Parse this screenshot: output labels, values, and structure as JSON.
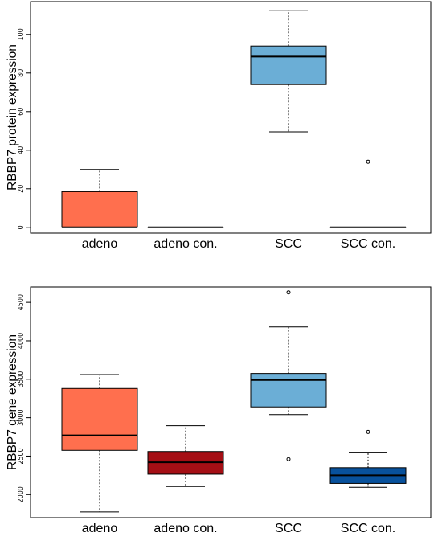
{
  "chart_data": [
    {
      "type": "box",
      "ylabel": "RBBP7 protein expression",
      "categories": [
        "adeno",
        "adeno con.",
        "SCC",
        "SCC con."
      ],
      "ylim": [
        -3,
        117
      ],
      "yticks": [
        0,
        20,
        40,
        60,
        80,
        100
      ],
      "boxes": [
        {
          "category": "adeno",
          "min": 0,
          "q1": 0,
          "median": 0,
          "q3": 18.5,
          "max": 30,
          "outliers": [],
          "color": "#FF6F4E"
        },
        {
          "category": "adeno con.",
          "min": 0,
          "q1": 0,
          "median": 0,
          "q3": 0,
          "max": 0,
          "outliers": [],
          "color": "#A50F15"
        },
        {
          "category": "SCC",
          "min": 49.5,
          "q1": 74,
          "median": 88.5,
          "q3": 94,
          "max": 112.5,
          "outliers": [],
          "color": "#6BAED6"
        },
        {
          "category": "SCC con.",
          "min": 0,
          "q1": 0,
          "median": 0,
          "q3": 0,
          "max": 0,
          "outliers": [
            34
          ],
          "color": "#08519C"
        }
      ]
    },
    {
      "type": "box",
      "ylabel": "RBBP7 gene expression",
      "categories": [
        "adeno",
        "adeno con.",
        "SCC",
        "SCC con."
      ],
      "ylim": [
        1700,
        4700
      ],
      "yticks": [
        2000,
        2500,
        3000,
        3500,
        4000,
        4500
      ],
      "boxes": [
        {
          "category": "adeno",
          "min": 1775,
          "q1": 2575,
          "median": 2770,
          "q3": 3380,
          "max": 3560,
          "outliers": [],
          "color": "#FF6F4E"
        },
        {
          "category": "adeno con.",
          "min": 2105,
          "q1": 2265,
          "median": 2420,
          "q3": 2560,
          "max": 2895,
          "outliers": [],
          "color": "#A50F15"
        },
        {
          "category": "SCC",
          "min": 3040,
          "q1": 3140,
          "median": 3490,
          "q3": 3575,
          "max": 4180,
          "outliers": [
            2460,
            4630
          ],
          "color": "#6BAED6"
        },
        {
          "category": "SCC con.",
          "min": 2095,
          "q1": 2145,
          "median": 2250,
          "q3": 2350,
          "max": 2550,
          "outliers": [
            2815
          ],
          "color": "#08519C"
        }
      ]
    }
  ]
}
